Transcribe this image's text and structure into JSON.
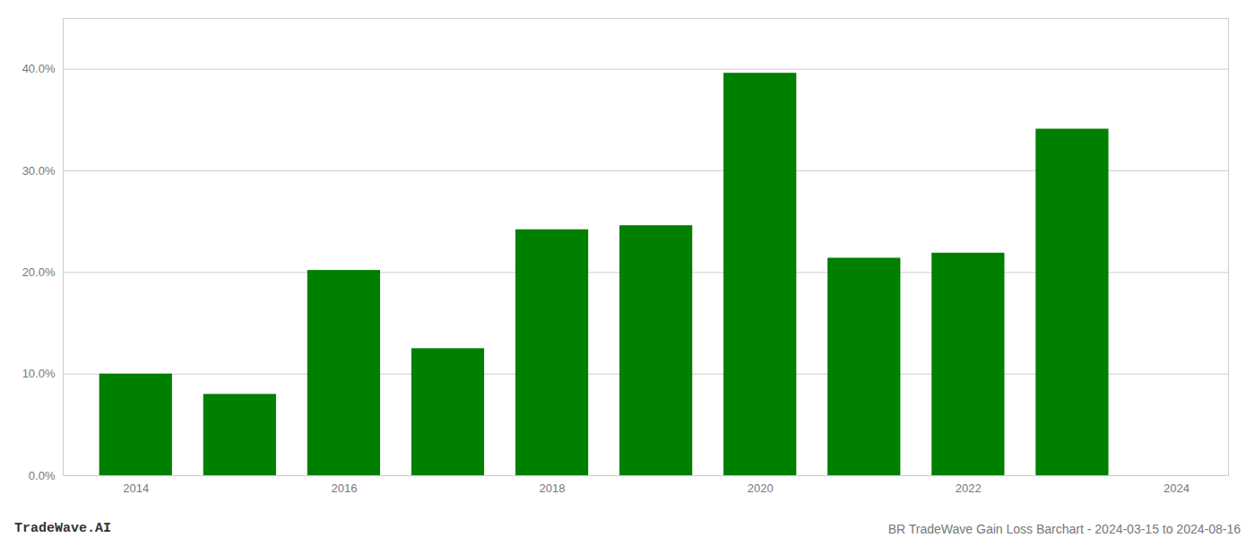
{
  "chart_data": {
    "type": "bar",
    "title": "BR TradeWave Gain Loss Barchart - 2024-03-15 to 2024-08-16",
    "annotations": [
      "TradeWave.AI"
    ],
    "x": [
      2014,
      2015,
      2016,
      2017,
      2018,
      2019,
      2020,
      2021,
      2022,
      2023
    ],
    "values": [
      0.1,
      0.08,
      0.202,
      0.125,
      0.242,
      0.246,
      0.396,
      0.214,
      0.219,
      0.341
    ],
    "color": "#008000",
    "xlim": [
      2013.3,
      2024.5
    ],
    "xticks": [
      2014,
      2016,
      2018,
      2020,
      2022,
      2024
    ],
    "ylim": [
      0,
      0.45
    ],
    "yticks": [
      {
        "value": 0.0,
        "label": "0.0%"
      },
      {
        "value": 0.1,
        "label": "10.0%"
      },
      {
        "value": 0.2,
        "label": "20.0%"
      },
      {
        "value": 0.3,
        "label": "30.0%"
      },
      {
        "value": 0.4,
        "label": "40.0%"
      }
    ],
    "grid": true
  }
}
